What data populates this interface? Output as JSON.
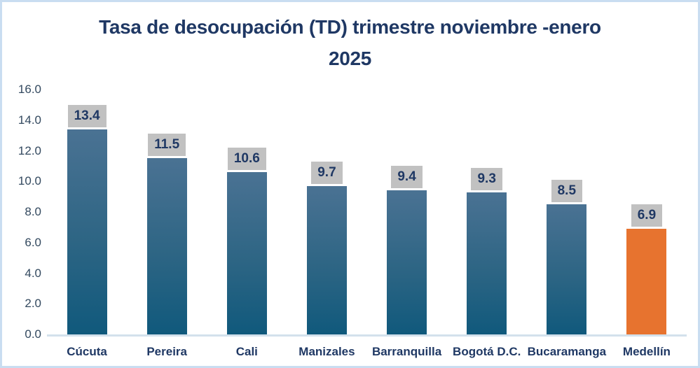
{
  "header": {
    "title_line1": "Tasa de desocupación  (TD) trimestre noviembre -enero",
    "title_line2": "2025"
  },
  "chart_data": {
    "type": "bar",
    "title": "Tasa de desocupación (TD) trimestre noviembre -enero 2025",
    "categories": [
      "Cúcuta",
      "Pereira",
      "Cali",
      "Manizales",
      "Barranquilla",
      "Bogotá D.C.",
      "Bucaramanga",
      "Medellín"
    ],
    "values": [
      13.4,
      11.5,
      10.6,
      9.7,
      9.4,
      9.3,
      8.5,
      6.9
    ],
    "value_labels": [
      "13.4",
      "11.5",
      "10.6",
      "9.7",
      "9.4",
      "9.3",
      "8.5",
      "6.9"
    ],
    "xlabel": "",
    "ylabel": "",
    "ylim": [
      0,
      16
    ],
    "ytick_step": 2,
    "yticks": [
      "16.0",
      "14.0",
      "12.0",
      "10.0",
      "8.0",
      "6.0",
      "4.0",
      "2.0",
      "0.0"
    ],
    "grid": false,
    "legend_position": "none",
    "highlight_index": 7,
    "colors": {
      "bar_gradient_top": "#4a7293",
      "bar_gradient_bottom": "#10597c",
      "highlight_bar": "#e7732f",
      "value_label_background": "#c1c1c1",
      "title_text": "#1f3864",
      "axis_label_text": "#33495f",
      "axis_line": "#d3e1ec",
      "frame_border": "#c9ddf1"
    }
  }
}
